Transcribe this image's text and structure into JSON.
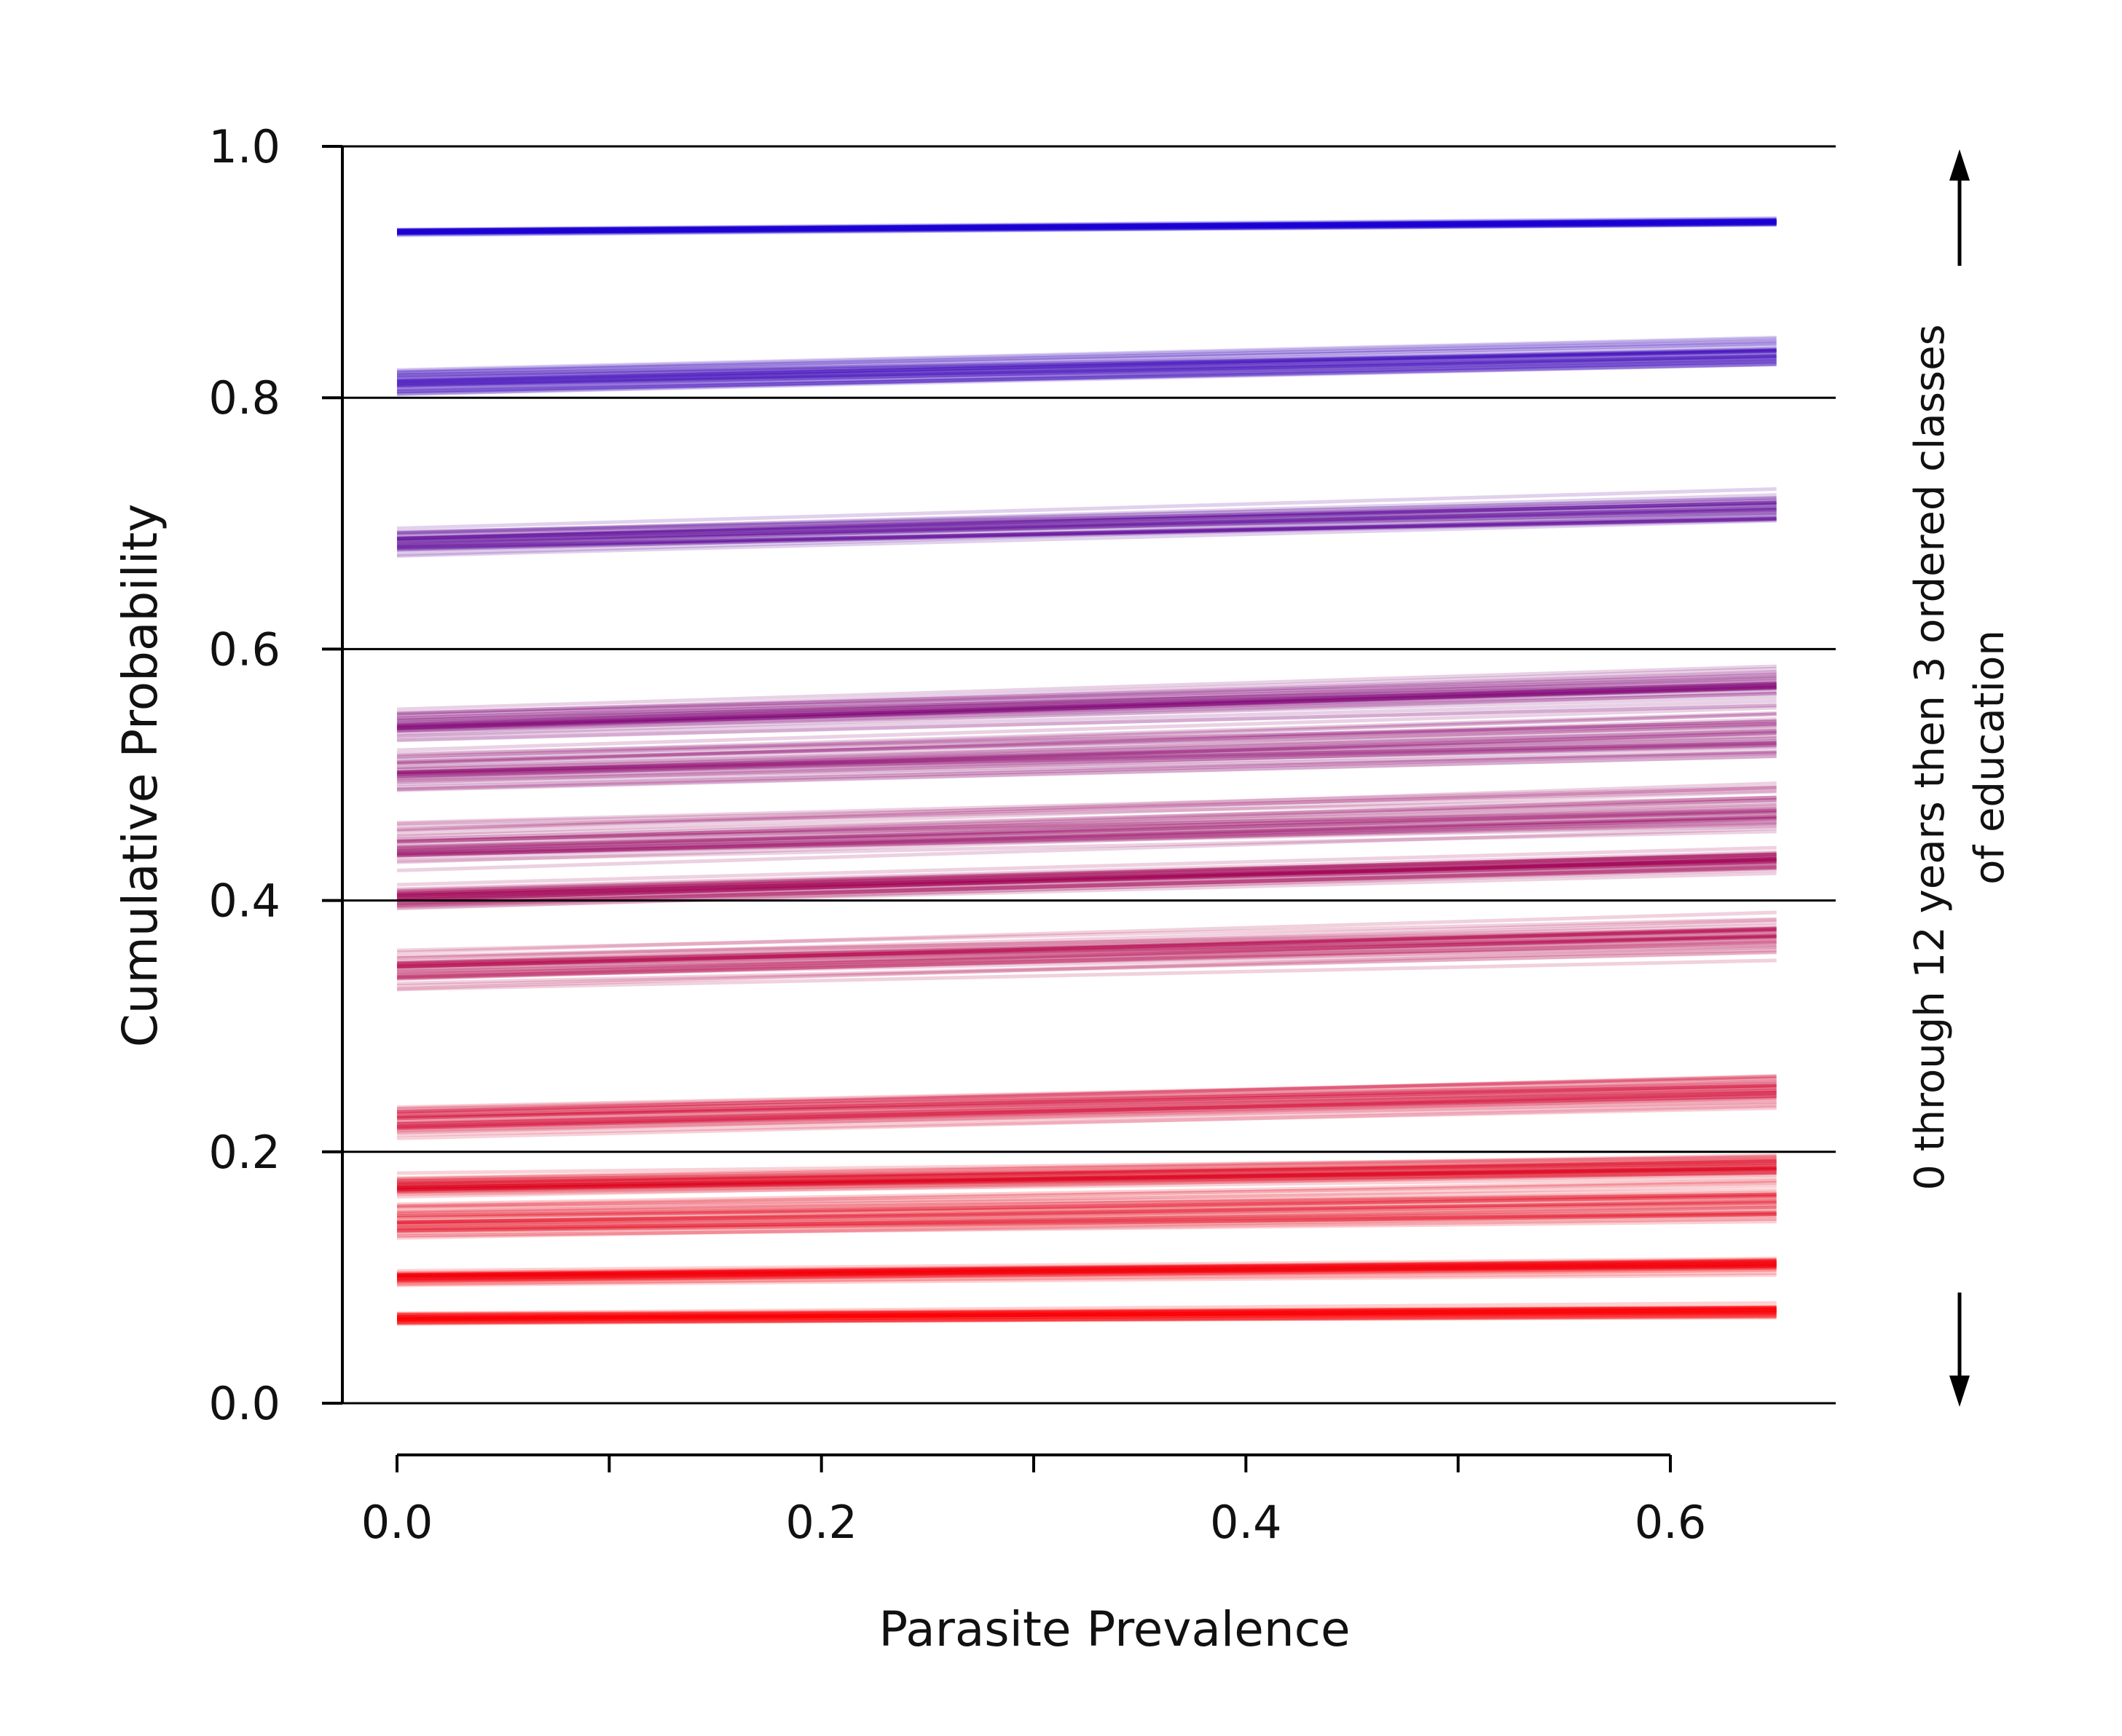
{
  "chart_data": {
    "type": "line",
    "xlabel": "Parasite Prevalence",
    "ylabel": "Cumulative Probability",
    "side_label": [
      "0 through 12 years then 3 ordered classes",
      "of education"
    ],
    "xlim": [
      -0.015,
      0.67
    ],
    "ylim": [
      0.0,
      1.0
    ],
    "x_ticks": [
      0.0,
      0.1,
      0.2,
      0.3,
      0.4,
      0.5,
      0.6
    ],
    "x_tick_labels": [
      "0.0",
      "0.2",
      "0.4",
      "0.6"
    ],
    "x_tick_label_values": [
      0.0,
      0.2,
      0.4,
      0.6
    ],
    "y_ticks": [
      0.0,
      0.2,
      0.4,
      0.6,
      0.8,
      1.0
    ],
    "y_tick_labels": [
      "0.0",
      "0.2",
      "0.4",
      "0.6",
      "0.8",
      "1.0"
    ],
    "gridlines_y": [
      0.2,
      0.4,
      0.6,
      0.8,
      1.0
    ],
    "x_range_of_lines": [
      0.0,
      0.65
    ],
    "color_low": "#ff0000",
    "color_high": "#1400d8",
    "series": [
      {
        "y_start": 0.067,
        "y_end": 0.073,
        "spread": 0.008
      },
      {
        "y_start": 0.1,
        "y_end": 0.11,
        "spread": 0.008
      },
      {
        "y_start": 0.145,
        "y_end": 0.16,
        "spread": 0.02
      },
      {
        "y_start": 0.172,
        "y_end": 0.188,
        "spread": 0.012
      },
      {
        "y_start": 0.225,
        "y_end": 0.25,
        "spread": 0.016
      },
      {
        "y_start": 0.345,
        "y_end": 0.372,
        "spread": 0.02
      },
      {
        "y_start": 0.402,
        "y_end": 0.432,
        "spread": 0.012
      },
      {
        "y_start": 0.445,
        "y_end": 0.475,
        "spread": 0.025
      },
      {
        "y_start": 0.5,
        "y_end": 0.53,
        "spread": 0.025
      },
      {
        "y_start": 0.54,
        "y_end": 0.572,
        "spread": 0.018
      },
      {
        "y_start": 0.685,
        "y_end": 0.712,
        "spread": 0.016
      },
      {
        "y_start": 0.812,
        "y_end": 0.835,
        "spread": 0.015
      },
      {
        "y_start": 0.932,
        "y_end": 0.94,
        "spread": 0.004
      }
    ],
    "draws_per_series": 40
  },
  "annotations": {
    "arrow_up": "up",
    "arrow_down": "down"
  }
}
